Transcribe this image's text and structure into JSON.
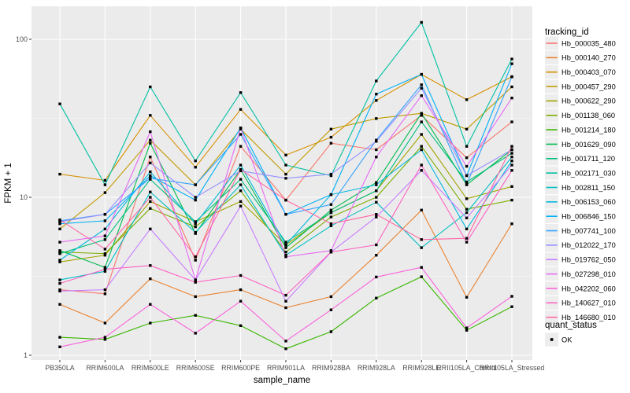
{
  "chart_data": {
    "type": "line",
    "title": "",
    "xlabel": "sample_name",
    "ylabel": "FPKM + 1",
    "y_scale": "log10",
    "y_ticks": [
      1,
      10,
      100
    ],
    "y_tick_labels": [
      "1",
      "10",
      "100"
    ],
    "y_minor_ticks": [
      3.162,
      31.62
    ],
    "ylim": [
      0.9,
      160
    ],
    "grid": true,
    "legend_position": "right",
    "legend_title": "tracking_id",
    "quant_legend": {
      "title": "quant_status",
      "items": [
        "OK"
      ],
      "marker": "black-square"
    },
    "point_marker": "black-square",
    "categories": [
      "PB350LA",
      "RRIM600LA",
      "RRIM600LE",
      "RRIM600SE",
      "RRIM600PE",
      "RRIM901LA",
      "RRIM928BA",
      "RRIM928LA",
      "RRIM928LE",
      "RRII105LA_Control",
      "RRII105LA_Stressed"
    ],
    "series": [
      {
        "name": "Hb_000035_480",
        "color": "#F8766D",
        "values": [
          2.6,
          2.45,
          18,
          4.0,
          21,
          9.6,
          22,
          20,
          33,
          17.8,
          30
        ]
      },
      {
        "name": "Hb_000140_270",
        "color": "#EA8331",
        "values": [
          2.1,
          1.6,
          3.05,
          2.35,
          2.6,
          2.0,
          2.35,
          4.3,
          8.3,
          2.33,
          6.8
        ]
      },
      {
        "name": "Hb_000403_070",
        "color": "#D89000",
        "values": [
          14,
          12.8,
          33,
          15.5,
          36,
          18.5,
          24,
          41,
          60,
          41.5,
          58
        ]
      },
      {
        "name": "Hb_000457_290",
        "color": "#C09B00",
        "values": [
          6.3,
          10.7,
          23,
          12,
          27,
          14,
          27,
          31.5,
          34,
          27,
          50
        ]
      },
      {
        "name": "Hb_000622_290",
        "color": "#A3A500",
        "values": [
          3.9,
          4.3,
          9.4,
          7.0,
          9.4,
          5.0,
          8.0,
          11,
          25,
          9.8,
          11.7
        ]
      },
      {
        "name": "Hb_001138_060",
        "color": "#7CAE00",
        "values": [
          4.5,
          4.4,
          8.5,
          6.5,
          11,
          4.5,
          7.5,
          10,
          21,
          8.4,
          9.6
        ]
      },
      {
        "name": "Hb_001214_180",
        "color": "#39B600",
        "values": [
          1.3,
          1.26,
          1.6,
          1.79,
          1.54,
          1.1,
          1.41,
          2.3,
          3.14,
          1.44,
          2.03
        ]
      },
      {
        "name": "Hb_001629_090",
        "color": "#00BB4E",
        "values": [
          4.6,
          3.6,
          22,
          5.9,
          15,
          4.8,
          8.3,
          12.4,
          34,
          12,
          20
        ]
      },
      {
        "name": "Hb_001711_120",
        "color": "#00BF7D",
        "values": [
          4.4,
          5.4,
          13,
          7.0,
          13,
          5.2,
          8.0,
          11,
          30,
          12.5,
          19
        ]
      },
      {
        "name": "Hb_002171_030",
        "color": "#00C1A3",
        "values": [
          39,
          12,
          50,
          17,
          46,
          16,
          13.7,
          54.5,
          128,
          21,
          75
        ]
      },
      {
        "name": "Hb_002811_150",
        "color": "#00BFC4",
        "values": [
          3.0,
          3.4,
          10.8,
          6.0,
          12,
          4.3,
          6.6,
          9.3,
          4.8,
          8.0,
          18
        ]
      },
      {
        "name": "Hb_006153_060",
        "color": "#00BADE",
        "values": [
          4.0,
          6.3,
          14.5,
          6.8,
          16,
          5.0,
          10.4,
          12,
          20,
          6.3,
          17
        ]
      },
      {
        "name": "Hb_006846_150",
        "color": "#00B0F6",
        "values": [
          6.8,
          7.1,
          13.7,
          9.6,
          27.5,
          7.8,
          10.4,
          45,
          60,
          13.7,
          70
        ]
      },
      {
        "name": "Hb_007741_100",
        "color": "#35A2FF",
        "values": [
          7.1,
          7.8,
          13.2,
          12,
          25,
          7.8,
          9.0,
          23,
          51.5,
          12.1,
          58
        ]
      },
      {
        "name": "Hb_012022_170",
        "color": "#9590FF",
        "values": [
          7.0,
          7.8,
          16.5,
          10,
          14.7,
          13.2,
          14,
          22.6,
          49,
          13.7,
          20
        ]
      },
      {
        "name": "Hb_019762_050",
        "color": "#C77CFF",
        "values": [
          2.55,
          2.6,
          6.3,
          3.0,
          8.8,
          2.2,
          4.5,
          7.5,
          14.8,
          7.4,
          16
        ]
      },
      {
        "name": "Hb_027298_010",
        "color": "#E76BF3",
        "values": [
          5.2,
          5.7,
          26,
          3.0,
          27.5,
          4.2,
          4.6,
          18,
          44,
          15.7,
          42.5
        ]
      },
      {
        "name": "Hb_042202_060",
        "color": "#FA62DB",
        "values": [
          1.13,
          1.3,
          2.1,
          1.38,
          2.2,
          1.23,
          1.94,
          3.13,
          3.6,
          1.49,
          2.36
        ]
      },
      {
        "name": "Hb_140627_010",
        "color": "#FF61C3",
        "values": [
          2.85,
          3.5,
          3.7,
          2.9,
          3.2,
          2.4,
          4.5,
          5.0,
          16,
          5.2,
          14.8
        ]
      },
      {
        "name": "Hb_146680_010",
        "color": "#FF67A4",
        "values": [
          7.2,
          4.7,
          10,
          4.2,
          15,
          9.6,
          6.8,
          7.8,
          5.4,
          5.5,
          21
        ]
      }
    ]
  },
  "style": {
    "panel_bg": "#EBEBEB",
    "grid_major": "#FFFFFF",
    "grid_minor": "#F5F5F5",
    "axis_text_color": "#4D4D4D",
    "title_text_color": "#000000",
    "point_color": "#000000",
    "legend_key_bg": "#EDEDED"
  }
}
